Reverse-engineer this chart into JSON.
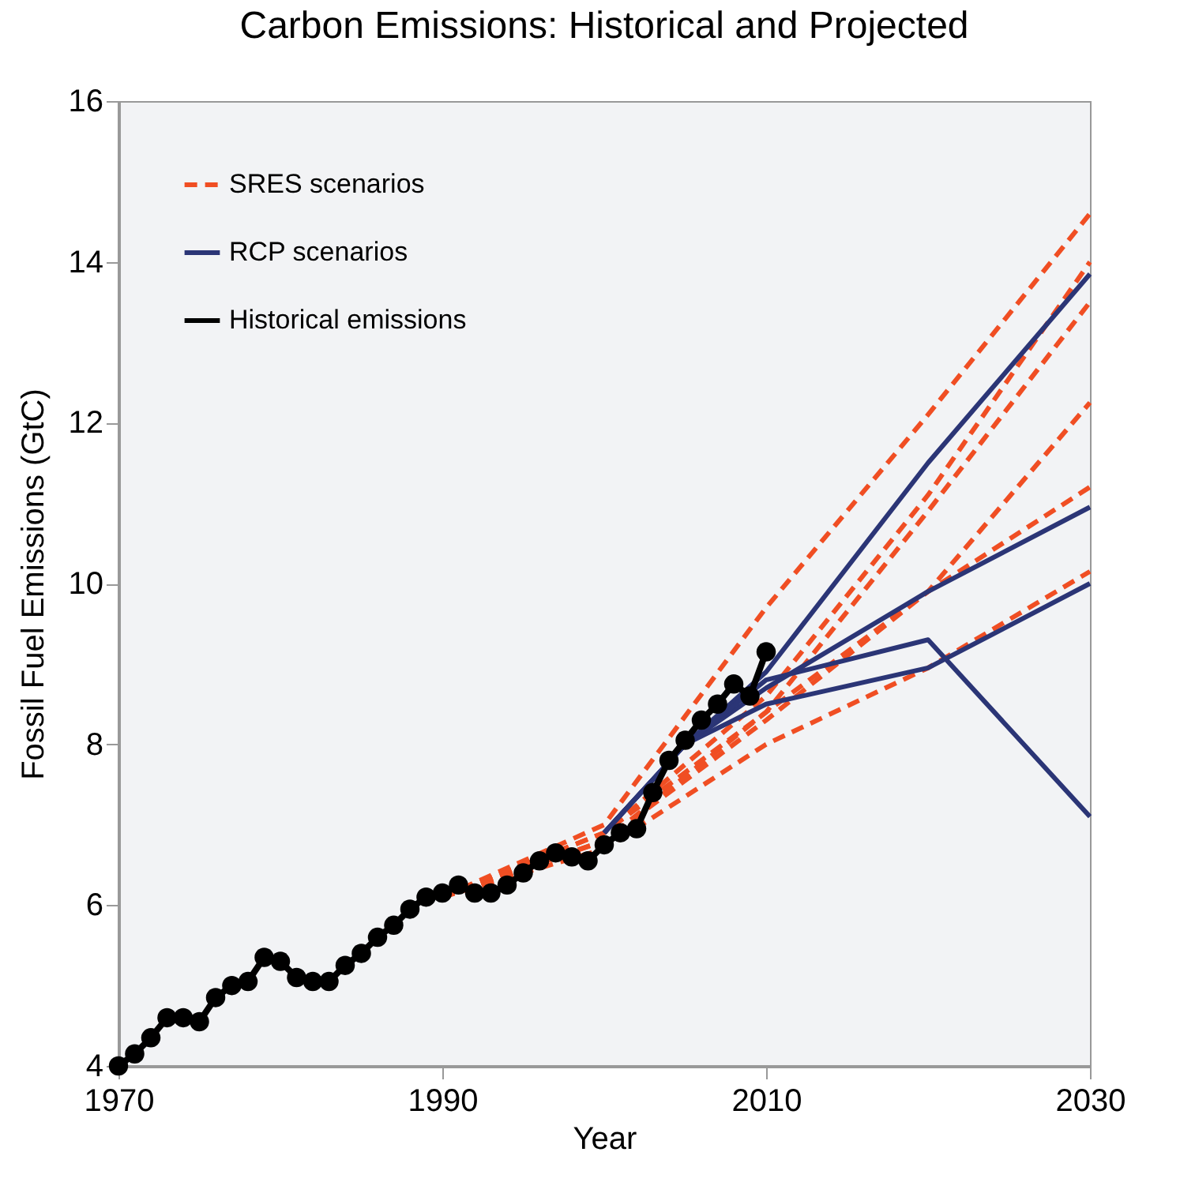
{
  "chart_data": {
    "type": "line",
    "title": "Carbon Emissions: Historical and Projected",
    "xlabel": "Year",
    "ylabel": "Fossil Fuel Emissions (GtC)",
    "xlim": [
      1970,
      2030
    ],
    "xticks": [
      1970,
      1990,
      2010,
      2030
    ],
    "ylim": [
      4,
      16
    ],
    "yticks": [
      4,
      6,
      8,
      10,
      12,
      14,
      16
    ],
    "grid": false,
    "legend": "top left",
    "series": [
      {
        "name": "SRES scenarios",
        "color": "#f04e23",
        "line_style": "dashed",
        "marker": "none",
        "x": [
          1990,
          2000,
          2010,
          2020,
          2030
        ],
        "values": [
          6.1,
          7.0,
          9.7,
          12.1,
          14.6
        ]
      },
      {
        "color": "#f04e23",
        "line_style": "dashed",
        "marker": "none",
        "x": [
          1990,
          2000,
          2010,
          2020,
          2030
        ],
        "values": [
          6.1,
          6.9,
          8.6,
          11.1,
          14.0
        ]
      },
      {
        "color": "#f04e23",
        "line_style": "dashed",
        "marker": "none",
        "x": [
          1990,
          2000,
          2010,
          2020,
          2030
        ],
        "values": [
          6.1,
          6.9,
          8.4,
          10.9,
          13.5
        ]
      },
      {
        "color": "#f04e23",
        "line_style": "dashed",
        "marker": "none",
        "x": [
          1990,
          2000,
          2010,
          2020,
          2030
        ],
        "values": [
          6.1,
          6.8,
          8.3,
          9.9,
          12.25
        ]
      },
      {
        "color": "#f04e23",
        "line_style": "dashed",
        "marker": "none",
        "x": [
          1990,
          2000,
          2010,
          2020,
          2030
        ],
        "values": [
          6.1,
          6.8,
          8.4,
          9.9,
          11.2
        ]
      },
      {
        "color": "#f04e23",
        "line_style": "dashed",
        "marker": "none",
        "x": [
          1990,
          2000,
          2010,
          2020,
          2030
        ],
        "values": [
          6.1,
          6.7,
          8.0,
          8.95,
          10.15
        ]
      },
      {
        "name": "RCP scenarios",
        "color": "#2b3576",
        "line_style": "solid",
        "marker": "none",
        "x": [
          2000,
          2005,
          2010,
          2020,
          2030
        ],
        "values": [
          6.9,
          8.0,
          8.9,
          11.5,
          13.85
        ]
      },
      {
        "color": "#2b3576",
        "line_style": "solid",
        "marker": "none",
        "x": [
          2000,
          2005,
          2010,
          2020,
          2030
        ],
        "values": [
          6.9,
          8.0,
          8.7,
          9.9,
          10.95
        ]
      },
      {
        "color": "#2b3576",
        "line_style": "solid",
        "marker": "none",
        "x": [
          2000,
          2005,
          2010,
          2020,
          2030
        ],
        "values": [
          6.9,
          8.0,
          8.5,
          8.95,
          10.0
        ]
      },
      {
        "color": "#2b3576",
        "line_style": "solid",
        "marker": "none",
        "x": [
          2000,
          2005,
          2010,
          2020,
          2030
        ],
        "values": [
          6.9,
          8.0,
          8.8,
          9.3,
          7.1
        ]
      },
      {
        "name": "Historical emissions",
        "color": "#000000",
        "line_style": "solid",
        "marker": "circle",
        "x": [
          1970,
          1971,
          1972,
          1973,
          1974,
          1975,
          1976,
          1977,
          1978,
          1979,
          1980,
          1981,
          1982,
          1983,
          1984,
          1985,
          1986,
          1987,
          1988,
          1989,
          1990,
          1991,
          1992,
          1993,
          1994,
          1995,
          1996,
          1997,
          1998,
          1999,
          2000,
          2001,
          2002,
          2003,
          2004,
          2005,
          2006,
          2007,
          2008,
          2009,
          2010
        ],
        "values": [
          4.0,
          4.15,
          4.35,
          4.6,
          4.6,
          4.55,
          4.85,
          5.0,
          5.05,
          5.35,
          5.3,
          5.1,
          5.05,
          5.05,
          5.25,
          5.4,
          5.6,
          5.75,
          5.95,
          6.1,
          6.15,
          6.25,
          6.15,
          6.15,
          6.25,
          6.4,
          6.55,
          6.65,
          6.6,
          6.55,
          6.75,
          6.9,
          6.95,
          7.4,
          7.8,
          8.05,
          8.3,
          8.5,
          8.75,
          8.6,
          9.15
        ]
      }
    ]
  }
}
